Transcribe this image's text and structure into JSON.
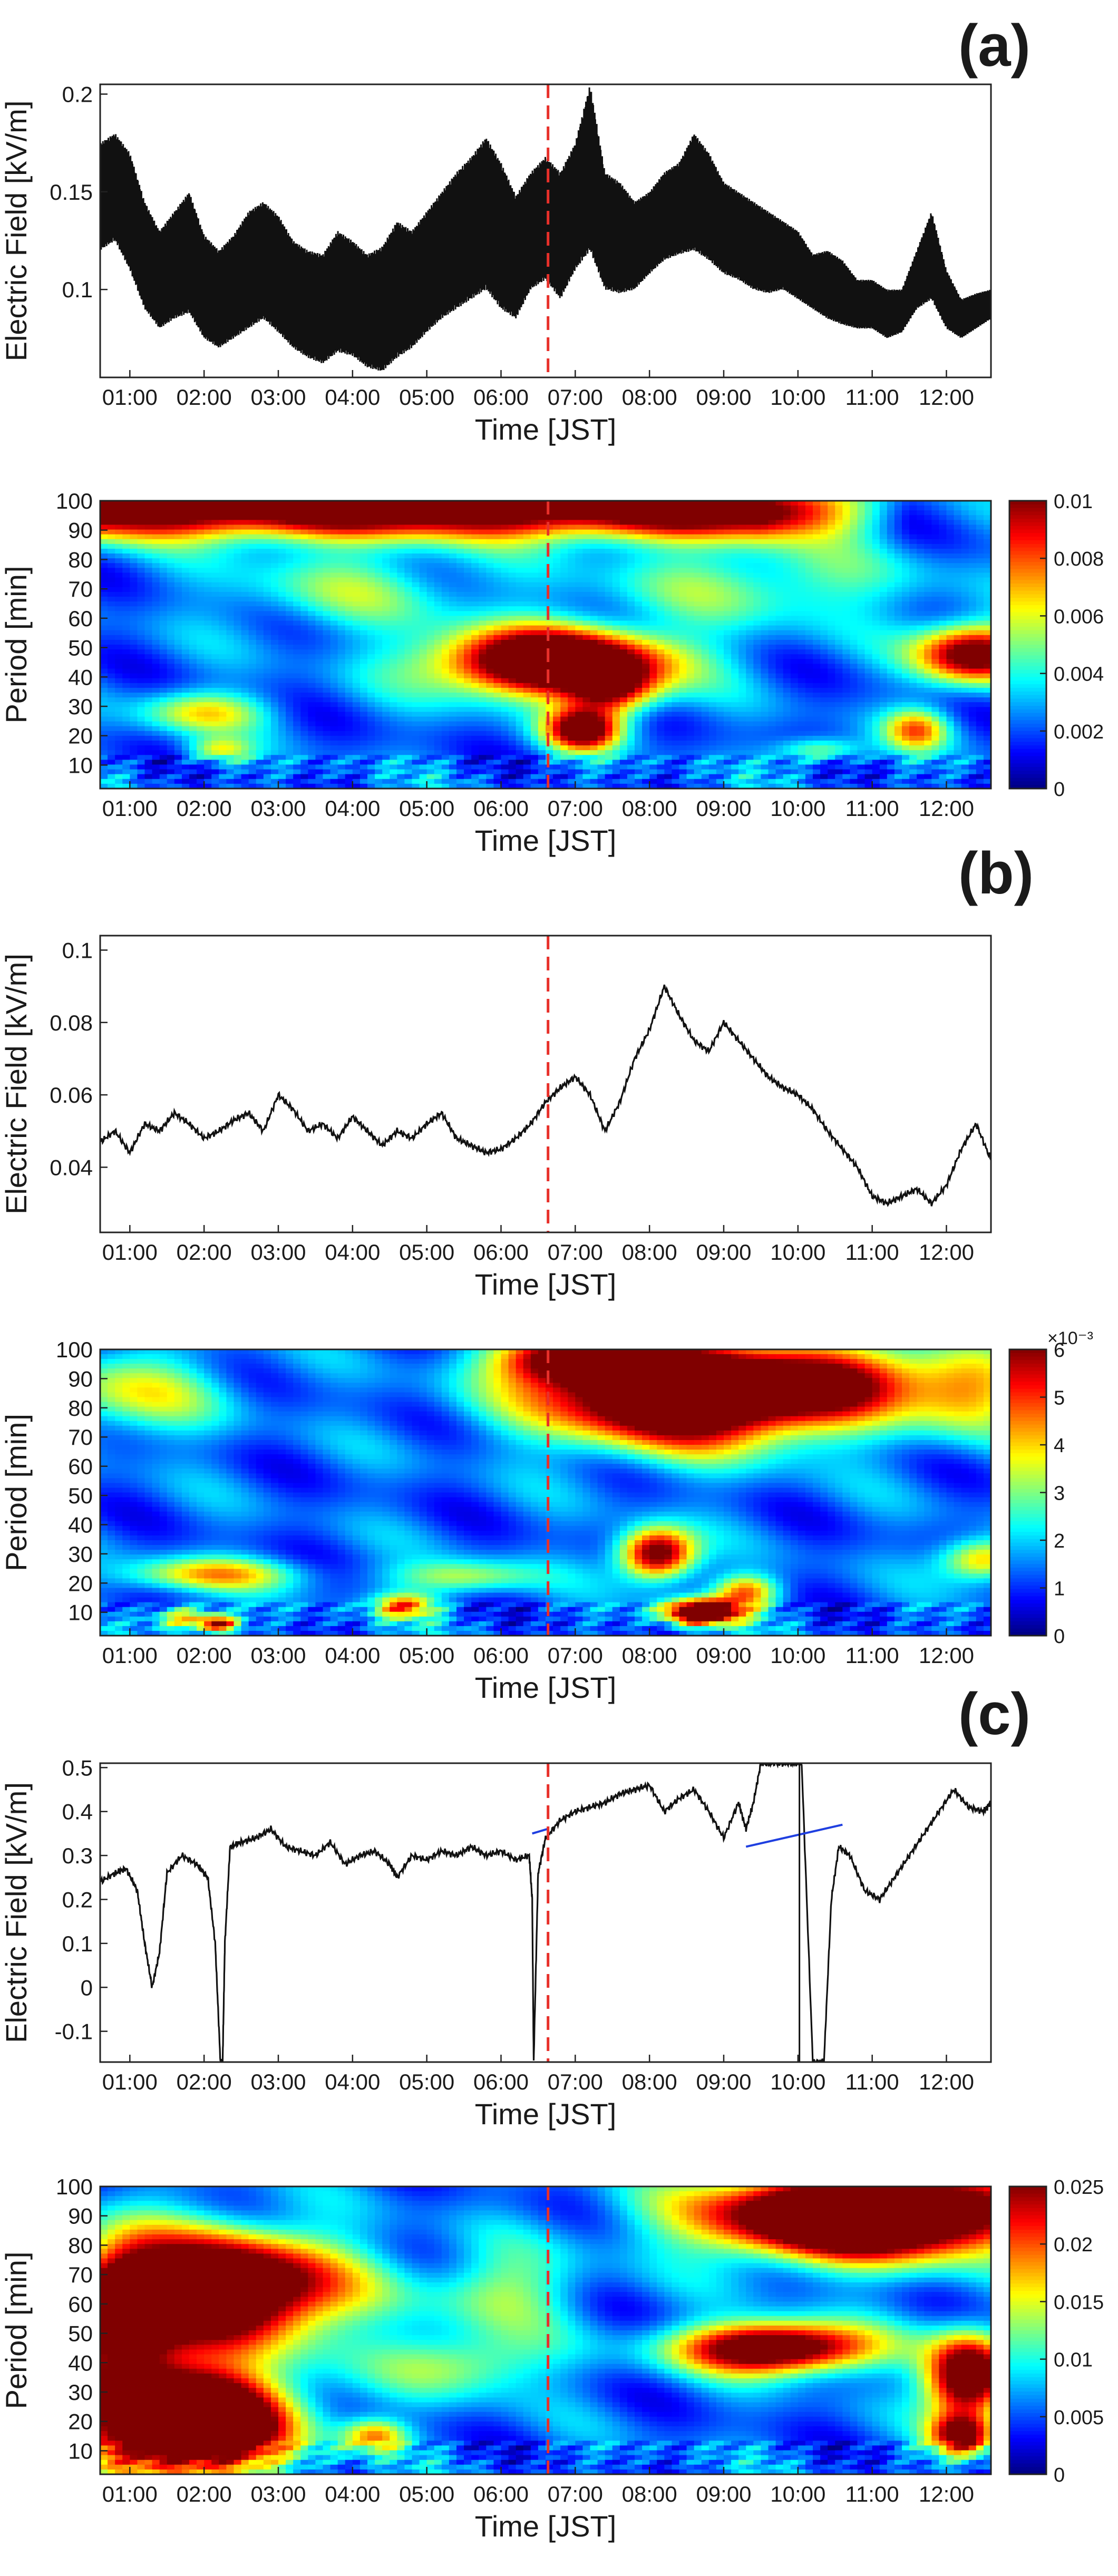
{
  "figure": {
    "panel_labels": [
      "(a)",
      "(b)",
      "(c)"
    ],
    "event_marker_time": "06:38",
    "colors": {
      "trace": "#111111",
      "event_line": "#e8302a",
      "gap_fill": "#1f3fe0",
      "colormap": [
        "#00007f",
        "#0000ff",
        "#007fff",
        "#00ffff",
        "#7fff7f",
        "#ffff00",
        "#ff7f00",
        "#ff0000",
        "#7f0000"
      ]
    }
  },
  "chart_data": [
    {
      "id": "a-ef",
      "type": "line",
      "panel": "(a)",
      "xlabel": "Time [JST]",
      "ylabel": "Electric Field [kV/m]",
      "xlim_hours": [
        0.6,
        12.6
      ],
      "ylim": [
        0.055,
        0.205
      ],
      "yticks": [
        0.1,
        0.15,
        0.2
      ],
      "ytick_labels": [
        "0.1",
        "0.15",
        "0.2"
      ],
      "xticks": [
        "01:00",
        "02:00",
        "03:00",
        "04:00",
        "05:00",
        "06:00",
        "07:00",
        "08:00",
        "09:00",
        "10:00",
        "11:00",
        "12:00"
      ],
      "envelope": {
        "x": [
          0.6,
          0.8,
          1.0,
          1.2,
          1.4,
          1.6,
          1.8,
          2.0,
          2.2,
          2.4,
          2.6,
          2.8,
          3.0,
          3.2,
          3.4,
          3.6,
          3.8,
          4.0,
          4.2,
          4.4,
          4.6,
          4.8,
          5.0,
          5.2,
          5.4,
          5.6,
          5.8,
          6.0,
          6.2,
          6.4,
          6.6,
          6.8,
          7.0,
          7.2,
          7.4,
          7.6,
          7.8,
          8.0,
          8.2,
          8.4,
          8.6,
          8.8,
          9.0,
          9.2,
          9.4,
          9.6,
          9.8,
          10.0,
          10.2,
          10.4,
          10.6,
          10.8,
          11.0,
          11.2,
          11.4,
          11.6,
          11.8,
          12.0,
          12.2,
          12.4,
          12.6
        ],
        "upper": [
          0.175,
          0.18,
          0.17,
          0.145,
          0.13,
          0.14,
          0.15,
          0.128,
          0.12,
          0.128,
          0.14,
          0.145,
          0.138,
          0.125,
          0.12,
          0.118,
          0.13,
          0.125,
          0.118,
          0.122,
          0.135,
          0.13,
          0.14,
          0.15,
          0.16,
          0.168,
          0.178,
          0.165,
          0.148,
          0.16,
          0.168,
          0.16,
          0.175,
          0.205,
          0.16,
          0.155,
          0.145,
          0.15,
          0.16,
          0.165,
          0.18,
          0.17,
          0.155,
          0.15,
          0.145,
          0.14,
          0.135,
          0.13,
          0.118,
          0.12,
          0.115,
          0.105,
          0.105,
          0.1,
          0.1,
          0.12,
          0.14,
          0.11,
          0.095,
          0.098,
          0.1
        ],
        "lower": [
          0.12,
          0.125,
          0.11,
          0.09,
          0.08,
          0.085,
          0.088,
          0.075,
          0.07,
          0.075,
          0.08,
          0.085,
          0.078,
          0.07,
          0.065,
          0.062,
          0.068,
          0.066,
          0.06,
          0.058,
          0.065,
          0.07,
          0.078,
          0.085,
          0.09,
          0.095,
          0.1,
          0.09,
          0.085,
          0.1,
          0.105,
          0.095,
          0.11,
          0.12,
          0.1,
          0.098,
          0.1,
          0.108,
          0.115,
          0.118,
          0.12,
          0.115,
          0.108,
          0.105,
          0.1,
          0.098,
          0.1,
          0.095,
          0.09,
          0.085,
          0.082,
          0.08,
          0.08,
          0.075,
          0.078,
          0.09,
          0.095,
          0.08,
          0.075,
          0.08,
          0.085
        ]
      }
    },
    {
      "id": "a-wt",
      "type": "heatmap",
      "panel": "(a)",
      "xlabel": "Time [JST]",
      "ylabel": "Period [min]",
      "xlim_hours": [
        0.6,
        12.6
      ],
      "ylim": [
        2,
        100
      ],
      "yticks": [
        10,
        20,
        30,
        40,
        50,
        60,
        70,
        80,
        90,
        100
      ],
      "xticks": [
        "01:00",
        "02:00",
        "03:00",
        "04:00",
        "05:00",
        "06:00",
        "07:00",
        "08:00",
        "09:00",
        "10:00",
        "11:00",
        "12:00"
      ],
      "colorbar": {
        "min": 0,
        "max": 0.01,
        "ticks": [
          0,
          0.002,
          0.004,
          0.006,
          0.008,
          0.01
        ],
        "tick_labels": [
          "0",
          "0.002",
          "0.004",
          "0.006",
          "0.008",
          "0.01"
        ],
        "exponent_label": ""
      },
      "features": [
        {
          "t": 6.7,
          "p": 45,
          "st": 1.1,
          "sp": 8,
          "a": 1.25
        },
        {
          "t": 7.1,
          "p": 22,
          "st": 0.35,
          "sp": 5,
          "a": 0.9
        },
        {
          "t": 7.5,
          "p": 35,
          "st": 0.4,
          "sp": 6,
          "a": 0.55
        },
        {
          "t": 12.4,
          "p": 48,
          "st": 0.55,
          "sp": 7,
          "a": 0.95
        },
        {
          "t": 11.6,
          "p": 22,
          "st": 0.3,
          "sp": 5,
          "a": 0.5
        },
        {
          "t": 2.0,
          "p": 28,
          "st": 0.6,
          "sp": 5,
          "a": 0.4
        },
        {
          "t": 2.2,
          "p": 15,
          "st": 0.3,
          "sp": 3,
          "a": 0.35
        },
        {
          "t": 10.3,
          "p": 15,
          "st": 0.4,
          "sp": 3,
          "a": 0.35
        },
        {
          "t": 4.0,
          "p": 70,
          "st": 1.2,
          "sp": 10,
          "a": 0.25
        },
        {
          "t": 9.5,
          "p": 72,
          "st": 1.5,
          "sp": 10,
          "a": 0.28
        }
      ],
      "band": {
        "p": 97,
        "sp": 7,
        "a": 0.95,
        "fade_start_hour": 9.5,
        "fade_end_hour": 11.5
      }
    },
    {
      "id": "b-ef",
      "type": "line",
      "panel": "(b)",
      "xlabel": "Time [JST]",
      "ylabel": "Electric Field [kV/m]",
      "xlim_hours": [
        0.6,
        12.6
      ],
      "ylim": [
        0.022,
        0.104
      ],
      "yticks": [
        0.04,
        0.06,
        0.08,
        0.1
      ],
      "ytick_labels": [
        "0.04",
        "0.06",
        "0.08",
        "0.1"
      ],
      "xticks": [
        "01:00",
        "02:00",
        "03:00",
        "04:00",
        "05:00",
        "06:00",
        "07:00",
        "08:00",
        "09:00",
        "10:00",
        "11:00",
        "12:00"
      ],
      "x": [
        0.6,
        0.8,
        1.0,
        1.2,
        1.4,
        1.6,
        1.8,
        2.0,
        2.2,
        2.4,
        2.6,
        2.8,
        3.0,
        3.2,
        3.4,
        3.6,
        3.8,
        4.0,
        4.2,
        4.4,
        4.6,
        4.8,
        5.0,
        5.2,
        5.4,
        5.6,
        5.8,
        6.0,
        6.2,
        6.4,
        6.6,
        6.8,
        7.0,
        7.2,
        7.4,
        7.6,
        7.8,
        8.0,
        8.2,
        8.4,
        8.6,
        8.8,
        9.0,
        9.2,
        9.4,
        9.6,
        9.8,
        10.0,
        10.2,
        10.4,
        10.6,
        10.8,
        11.0,
        11.2,
        11.4,
        11.6,
        11.8,
        12.0,
        12.2,
        12.4,
        12.6
      ],
      "y": [
        0.047,
        0.05,
        0.044,
        0.052,
        0.05,
        0.055,
        0.052,
        0.048,
        0.05,
        0.053,
        0.055,
        0.05,
        0.06,
        0.056,
        0.05,
        0.052,
        0.048,
        0.054,
        0.05,
        0.046,
        0.05,
        0.048,
        0.052,
        0.055,
        0.048,
        0.046,
        0.044,
        0.045,
        0.048,
        0.052,
        0.058,
        0.062,
        0.065,
        0.06,
        0.05,
        0.058,
        0.07,
        0.078,
        0.09,
        0.082,
        0.075,
        0.072,
        0.08,
        0.075,
        0.07,
        0.065,
        0.062,
        0.06,
        0.056,
        0.05,
        0.045,
        0.04,
        0.032,
        0.03,
        0.032,
        0.034,
        0.03,
        0.035,
        0.045,
        0.052,
        0.042
      ]
    },
    {
      "id": "b-wt",
      "type": "heatmap",
      "panel": "(b)",
      "xlabel": "Time [JST]",
      "ylabel": "Period [min]",
      "xlim_hours": [
        0.6,
        12.6
      ],
      "ylim": [
        2,
        100
      ],
      "yticks": [
        10,
        20,
        30,
        40,
        50,
        60,
        70,
        80,
        90,
        100
      ],
      "xticks": [
        "01:00",
        "02:00",
        "03:00",
        "04:00",
        "05:00",
        "06:00",
        "07:00",
        "08:00",
        "09:00",
        "10:00",
        "11:00",
        "12:00"
      ],
      "colorbar": {
        "min": 0,
        "max": 6,
        "ticks": [
          0,
          1,
          2,
          3,
          4,
          5,
          6
        ],
        "tick_labels": [
          "0",
          "1",
          "2",
          "3",
          "4",
          "5",
          "6"
        ],
        "exponent_label": "×10⁻³"
      },
      "features": [
        {
          "t": 8.6,
          "p": 85,
          "st": 1.4,
          "sp": 12,
          "a": 1.4
        },
        {
          "t": 7.0,
          "p": 97,
          "st": 0.7,
          "sp": 6,
          "a": 0.8
        },
        {
          "t": 10.8,
          "p": 90,
          "st": 0.8,
          "sp": 8,
          "a": 0.45
        },
        {
          "t": 8.1,
          "p": 30,
          "st": 0.35,
          "sp": 6,
          "a": 0.95
        },
        {
          "t": 8.7,
          "p": 10,
          "st": 0.35,
          "sp": 3,
          "a": 1.2
        },
        {
          "t": 9.3,
          "p": 17,
          "st": 0.3,
          "sp": 4,
          "a": 0.55
        },
        {
          "t": 2.1,
          "p": 23,
          "st": 0.8,
          "sp": 4,
          "a": 0.45
        },
        {
          "t": 1.7,
          "p": 8,
          "st": 0.3,
          "sp": 3,
          "a": 0.5
        },
        {
          "t": 2.2,
          "p": 6,
          "st": 0.2,
          "sp": 2,
          "a": 0.7
        },
        {
          "t": 4.7,
          "p": 12,
          "st": 0.3,
          "sp": 3,
          "a": 0.55
        },
        {
          "t": 5.5,
          "p": 22,
          "st": 0.7,
          "sp": 4,
          "a": 0.35
        },
        {
          "t": 12.5,
          "p": 28,
          "st": 0.4,
          "sp": 5,
          "a": 0.55
        },
        {
          "t": 1.0,
          "p": 85,
          "st": 0.9,
          "sp": 10,
          "a": 0.35
        },
        {
          "t": 12.3,
          "p": 85,
          "st": 0.6,
          "sp": 10,
          "a": 0.45
        }
      ]
    },
    {
      "id": "c-ef",
      "type": "line",
      "panel": "(c)",
      "xlabel": "Time [JST]",
      "ylabel": "Electric Field [kV/m]",
      "xlim_hours": [
        0.6,
        12.6
      ],
      "ylim": [
        -0.17,
        0.51
      ],
      "yticks": [
        -0.1,
        0,
        0.1,
        0.2,
        0.3,
        0.4,
        0.5
      ],
      "ytick_labels": [
        "-0.1",
        "0",
        "0.1",
        "0.2",
        "0.3",
        "0.4",
        "0.5"
      ],
      "xticks": [
        "01:00",
        "02:00",
        "03:00",
        "04:00",
        "05:00",
        "06:00",
        "07:00",
        "08:00",
        "09:00",
        "10:00",
        "11:00",
        "12:00"
      ],
      "x": [
        0.6,
        0.8,
        0.95,
        1.1,
        1.2,
        1.3,
        1.4,
        1.5,
        1.7,
        1.9,
        2.05,
        2.15,
        2.22,
        2.25,
        2.28,
        2.35,
        2.5,
        2.7,
        2.9,
        3.1,
        3.3,
        3.5,
        3.7,
        3.9,
        4.1,
        4.3,
        4.5,
        4.6,
        4.8,
        5.0,
        5.2,
        5.4,
        5.6,
        5.8,
        6.0,
        6.2,
        6.38,
        6.42,
        6.44,
        6.5,
        6.6,
        6.8,
        7.0,
        7.2,
        7.4,
        7.6,
        7.8,
        8.0,
        8.2,
        8.4,
        8.6,
        8.8,
        9.0,
        9.2,
        9.3,
        9.4,
        9.5,
        9.6,
        9.75,
        9.9,
        10.05,
        10.2,
        10.35,
        10.45,
        10.55,
        10.7,
        10.9,
        11.1,
        11.3,
        11.5,
        11.7,
        11.9,
        12.1,
        12.3,
        12.5,
        12.6
      ],
      "y": [
        0.24,
        0.26,
        0.27,
        0.22,
        0.1,
        0.0,
        0.08,
        0.26,
        0.3,
        0.28,
        0.25,
        0.1,
        -0.17,
        -0.17,
        0.1,
        0.32,
        0.33,
        0.34,
        0.36,
        0.32,
        0.31,
        0.3,
        0.33,
        0.28,
        0.3,
        0.31,
        0.28,
        0.25,
        0.3,
        0.29,
        0.31,
        0.3,
        0.32,
        0.3,
        0.31,
        0.29,
        0.3,
        0.2,
        -0.17,
        0.26,
        0.34,
        0.38,
        0.4,
        0.41,
        0.42,
        0.44,
        0.45,
        0.46,
        0.4,
        0.43,
        0.45,
        0.4,
        0.34,
        0.42,
        0.36,
        0.42,
        0.51,
        0.51,
        0.51,
        0.51,
        0.51,
        -0.17,
        -0.17,
        0.2,
        0.32,
        0.3,
        0.22,
        0.2,
        0.25,
        0.3,
        0.35,
        0.4,
        0.45,
        0.41,
        0.4,
        0.42
      ],
      "gap_segments": [
        {
          "x": [
            6.42,
            6.62
          ],
          "y": [
            0.35,
            0.36
          ]
        },
        {
          "x": [
            9.3,
            10.6
          ],
          "y": [
            0.32,
            0.37
          ]
        }
      ],
      "spikes": [
        {
          "x": 10.02,
          "y": [
            -0.17,
            0.51
          ]
        }
      ]
    },
    {
      "id": "c-wt",
      "type": "heatmap",
      "panel": "(c)",
      "xlabel": "Time [JST]",
      "ylabel": "Period [min]",
      "xlim_hours": [
        0.6,
        12.6
      ],
      "ylim": [
        2,
        100
      ],
      "yticks": [
        10,
        20,
        30,
        40,
        50,
        60,
        70,
        80,
        90,
        100
      ],
      "xticks": [
        "01:00",
        "02:00",
        "03:00",
        "04:00",
        "05:00",
        "06:00",
        "07:00",
        "08:00",
        "09:00",
        "10:00",
        "11:00",
        "12:00"
      ],
      "colorbar": {
        "min": 0,
        "max": 0.025,
        "ticks": [
          0,
          0.005,
          0.01,
          0.015,
          0.02,
          0.025
        ],
        "tick_labels": [
          "0",
          "0.005",
          "0.01",
          "0.015",
          "0.02",
          "0.025"
        ],
        "exponent_label": ""
      },
      "features": [
        {
          "t": 1.8,
          "p": 20,
          "st": 0.9,
          "sp": 12,
          "a": 1.6
        },
        {
          "t": 2.3,
          "p": 65,
          "st": 1.1,
          "sp": 13,
          "a": 1.25
        },
        {
          "t": 0.9,
          "p": 55,
          "st": 0.5,
          "sp": 18,
          "a": 0.9
        },
        {
          "t": 10.9,
          "p": 90,
          "st": 1.5,
          "sp": 10,
          "a": 1.5
        },
        {
          "t": 9.7,
          "p": 45,
          "st": 0.9,
          "sp": 6,
          "a": 1.1
        },
        {
          "t": 12.3,
          "p": 35,
          "st": 0.4,
          "sp": 10,
          "a": 1.1
        },
        {
          "t": 12.2,
          "p": 15,
          "st": 0.3,
          "sp": 5,
          "a": 0.75
        },
        {
          "t": 5.5,
          "p": 40,
          "st": 0.8,
          "sp": 8,
          "a": 0.35
        },
        {
          "t": 6.0,
          "p": 65,
          "st": 0.7,
          "sp": 10,
          "a": 0.3
        },
        {
          "t": 4.3,
          "p": 15,
          "st": 0.3,
          "sp": 4,
          "a": 0.5
        }
      ]
    }
  ]
}
